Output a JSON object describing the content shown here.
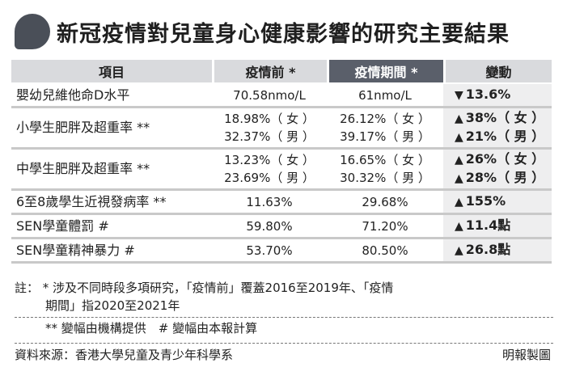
{
  "title": "新冠疫情對兒童身心健康影響的研究主要結果",
  "table": {
    "headers": [
      "項目",
      "疫情前 *",
      "疫情期間 *",
      "變動"
    ],
    "rows": [
      {
        "item": "嬰幼兒維他命D水平",
        "before": [
          "70.58nmo/L"
        ],
        "during": [
          "61nmo/L"
        ],
        "change": [
          {
            "dir": "down",
            "arrow": "▼",
            "text": "13.6%"
          }
        ]
      },
      {
        "item": "小學生肥胖及超重率 **",
        "before": [
          "18.98%（ 女 ）",
          "32.37%（ 男 ）"
        ],
        "during": [
          "26.12%（ 女 ）",
          "39.17%（ 男 ）"
        ],
        "change": [
          {
            "dir": "up",
            "arrow": "▲",
            "text": "38%（ 女 ）"
          },
          {
            "dir": "up",
            "arrow": "▲",
            "text": "21%（ 男 ）"
          }
        ]
      },
      {
        "item": "中學生肥胖及超重率 **",
        "before": [
          "13.23%（ 女 ）",
          "23.69%（ 男 ）"
        ],
        "during": [
          "16.65%（ 女 ）",
          "30.32%（ 男 ）"
        ],
        "change": [
          {
            "dir": "up",
            "arrow": "▲",
            "text": "26%（ 女 ）"
          },
          {
            "dir": "up",
            "arrow": "▲",
            "text": "28%（ 男 ）"
          }
        ]
      },
      {
        "item": "6至8歲學生近視發病率 **",
        "before": [
          "11.63%"
        ],
        "during": [
          "29.68%"
        ],
        "change": [
          {
            "dir": "up",
            "arrow": "▲",
            "text": "155%"
          }
        ]
      },
      {
        "item": "SEN學童體罰 #",
        "before": [
          "59.80%"
        ],
        "during": [
          "71.20%"
        ],
        "change": [
          {
            "dir": "up",
            "arrow": "▲",
            "text": "11.4點"
          }
        ]
      },
      {
        "item": "SEN學童精神暴力 #",
        "before": [
          "53.70%"
        ],
        "during": [
          "80.50%"
        ],
        "change": [
          {
            "dir": "up",
            "arrow": "▲",
            "text": "26.8點"
          }
        ]
      }
    ]
  },
  "notes": {
    "line1": "註： * 涉及不同時段多項研究，「疫情前」覆蓋2016至2019年、「疫情",
    "line2": "期間」指2020至2021年",
    "line3": "** 變幅由機構提供　# 變幅由本報計算"
  },
  "source": "資料來源：香港大學兒童及青少年科學系",
  "credit": "明報製圖",
  "colors": {
    "header_bg": "#d9dadd",
    "header_highlight": "#5a5f6a",
    "change_bg": "#eeeeef",
    "title_icon": "#4a4f58"
  }
}
